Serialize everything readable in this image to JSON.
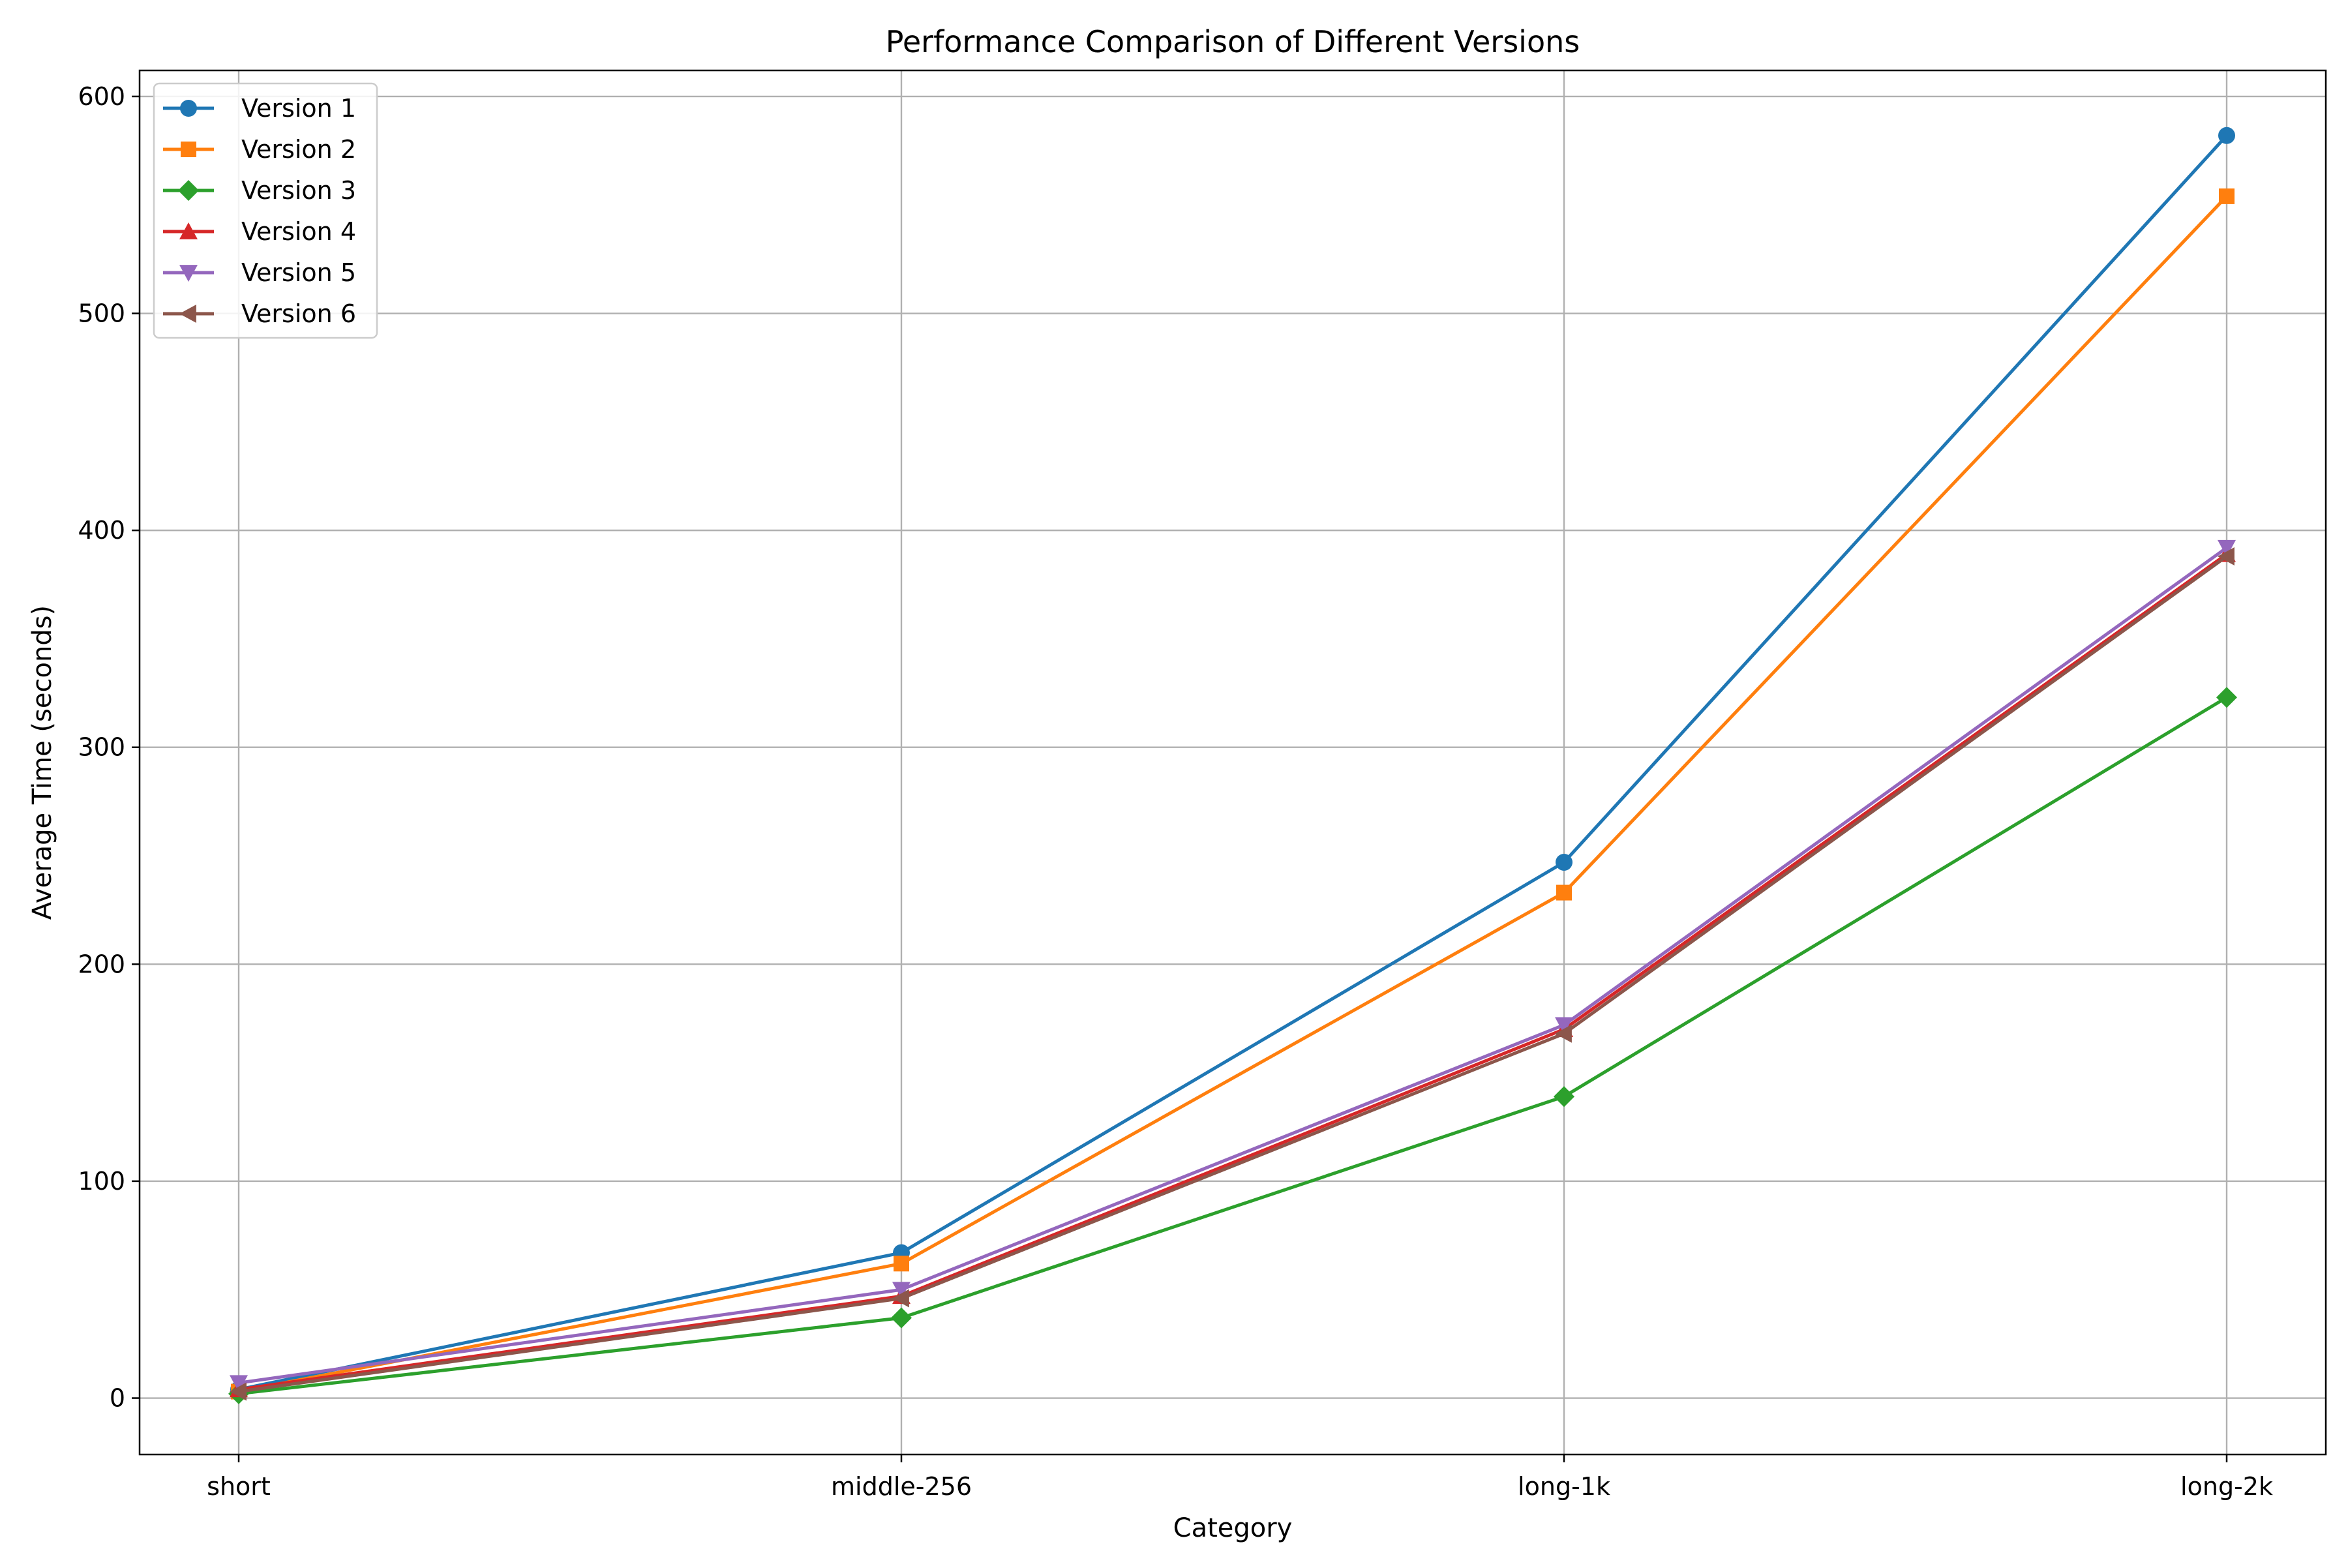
{
  "chart_data": {
    "type": "line",
    "title": "Performance Comparison of Different Versions",
    "xlabel": "Category",
    "ylabel": "Average Time (seconds)",
    "categories": [
      "short",
      "middle-256",
      "long-1k",
      "long-2k"
    ],
    "ylim": [
      -26,
      612
    ],
    "yticks": [
      0,
      100,
      200,
      300,
      400,
      500,
      600
    ],
    "grid": true,
    "legend_position": "top-left",
    "series": [
      {
        "name": "Version 1",
        "color": "#1f77b4",
        "marker": "circle",
        "values": [
          4,
          67,
          247,
          582
        ]
      },
      {
        "name": "Version 2",
        "color": "#ff7f0e",
        "marker": "square",
        "values": [
          3,
          62,
          233,
          554
        ]
      },
      {
        "name": "Version 3",
        "color": "#2ca02c",
        "marker": "diamond",
        "values": [
          2,
          37,
          139,
          323
        ]
      },
      {
        "name": "Version 4",
        "color": "#d62728",
        "marker": "triangle-up",
        "values": [
          4,
          47,
          170,
          389
        ]
      },
      {
        "name": "Version 5",
        "color": "#9467bd",
        "marker": "triangle-down",
        "values": [
          7,
          50,
          172,
          392
        ]
      },
      {
        "name": "Version 6",
        "color": "#8c564b",
        "marker": "triangle-left",
        "values": [
          3,
          46,
          168,
          388
        ]
      }
    ]
  }
}
